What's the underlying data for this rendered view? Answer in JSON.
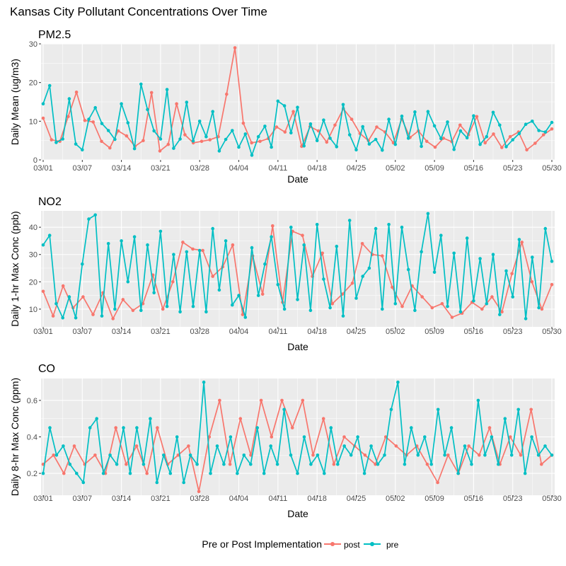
{
  "figure": {
    "title": "Kansas City Pollutant Concentrations Over Time"
  },
  "legend": {
    "title": "Pre or Post Implementation",
    "entries": [
      {
        "label": "post",
        "color": "#F8766D"
      },
      {
        "label": "pre",
        "color": "#00BFC4"
      }
    ]
  },
  "colors": {
    "post": "#F8766D",
    "pre": "#00BFC4",
    "panel_bg": "#EBEBEB",
    "grid": "#FFFFFF"
  },
  "chart_data": [
    {
      "type": "line",
      "title": "PM2.5",
      "xlabel": "Date",
      "ylabel": "Daily Mean (ug/m3)",
      "ylim": [
        0,
        30
      ],
      "yticks": [
        0,
        10,
        20,
        30
      ],
      "grid": true,
      "xticks": [
        "03/01",
        "03/07",
        "03/14",
        "03/21",
        "03/28",
        "04/04",
        "04/11",
        "04/18",
        "04/25",
        "05/02",
        "05/09",
        "05/16",
        "05/23",
        "05/30"
      ],
      "series": [
        {
          "name": "post",
          "values": [
            10.8,
            5.2,
            4.8,
            11.2,
            17.5,
            10.2,
            9.8,
            4.8,
            3.1,
            7.5,
            6.2,
            3.5,
            5.0,
            17.4,
            2.3,
            4.0,
            14.5,
            6.5,
            4.4,
            4.8,
            5.2,
            6.0,
            17.0,
            29.0,
            9.5,
            4.4,
            4.8,
            5.5,
            8.5,
            7.2,
            12.5,
            3.5,
            8.6,
            7.5,
            4.6,
            9.0,
            13.2,
            10.5,
            6.8,
            5.0,
            8.5,
            7.2,
            4.4,
            10.6,
            5.8,
            7.5,
            4.8,
            3.3,
            5.6,
            4.7,
            9.0,
            6.5,
            11.2,
            4.4,
            6.7,
            3.2,
            6.0,
            7.2,
            2.6,
            4.3,
            6.5,
            8.0
          ]
        },
        {
          "name": "pre",
          "values": [
            14.5,
            19.2,
            4.5,
            5.4,
            15.8,
            4.1,
            2.6,
            10.5,
            13.5,
            9.4,
            7.6,
            5.3,
            14.5,
            9.6,
            2.9,
            19.6,
            13.0,
            7.5,
            5.4,
            18.2,
            3.0,
            5.4,
            14.9,
            4.9,
            10.0,
            6.0,
            12.5,
            2.3,
            5.3,
            7.6,
            3.3,
            6.7,
            1.2,
            6.0,
            8.7,
            3.3,
            15.2,
            14.0,
            7.0,
            13.6,
            3.6,
            9.3,
            5.0,
            10.3,
            5.6,
            3.4,
            14.3,
            6.5,
            2.6,
            8.6,
            4.1,
            5.3,
            2.5,
            10.5,
            4.0,
            11.3,
            5.6,
            12.4,
            3.5,
            12.5,
            8.8,
            5.5,
            9.8,
            2.7,
            7.5,
            5.7,
            11.4,
            4.0,
            6.0,
            12.3,
            9.0,
            3.4,
            5.2,
            6.8,
            9.2,
            10.0,
            7.6,
            7.2,
            9.7
          ]
        }
      ]
    },
    {
      "type": "line",
      "title": "NO2",
      "xlabel": "Date",
      "ylabel": "Daily 1-hr Max Conc (ppb)",
      "ylim": [
        3.5,
        46
      ],
      "yticks": [
        10,
        20,
        30,
        40
      ],
      "grid": true,
      "xticks": [
        "03/01",
        "03/07",
        "03/14",
        "03/21",
        "03/28",
        "04/04",
        "04/11",
        "04/18",
        "04/25",
        "05/02",
        "05/09",
        "05/16",
        "05/23",
        "05/30"
      ],
      "series": [
        {
          "name": "post",
          "values": [
            16.5,
            7.5,
            18.5,
            10.5,
            14.5,
            8.0,
            16.0,
            6.5,
            13.5,
            9.5,
            12.0,
            22.5,
            10.0,
            20.0,
            34.5,
            32.0,
            31.5,
            22.0,
            25.5,
            33.5,
            8.0,
            29.5,
            15.5,
            40.5,
            12.5,
            38.5,
            37.0,
            22.0,
            30.5,
            12.0,
            15.5,
            19.5,
            34.0,
            30.0,
            29.5,
            18.0,
            11.0,
            18.5,
            14.5,
            10.5,
            12.0,
            7.0,
            8.5,
            12.5,
            10.0,
            14.5,
            9.0,
            23.0,
            34.5,
            20.0,
            10.0,
            19.0
          ]
        },
        {
          "name": "pre",
          "values": [
            33.5,
            37.0,
            12.0,
            6.8,
            14.5,
            6.8,
            26.5,
            43.0,
            44.5,
            7.5,
            34.0,
            10.0,
            35.0,
            20.0,
            36.5,
            9.5,
            33.5,
            16.0,
            38.5,
            11.0,
            30.0,
            9.0,
            31.0,
            11.0,
            31.5,
            9.0,
            39.5,
            17.0,
            35.0,
            11.5,
            15.0,
            7.0,
            32.5,
            15.0,
            26.5,
            36.5,
            19.0,
            10.0,
            40.0,
            13.5,
            33.5,
            9.5,
            41.0,
            21.0,
            10.5,
            33.0,
            7.5,
            42.5,
            14.0,
            22.0,
            25.0,
            39.5,
            10.0,
            41.0,
            12.0,
            40.0,
            24.5,
            9.5,
            31.0,
            45.0,
            23.5,
            37.0,
            11.0,
            30.5,
            9.0,
            36.0,
            13.0,
            28.5,
            12.0,
            30.0,
            8.0,
            24.0,
            14.5,
            35.5,
            6.5,
            29.0,
            10.5,
            39.5,
            27.5
          ]
        }
      ]
    },
    {
      "type": "line",
      "title": "CO",
      "xlabel": "Date",
      "ylabel": "Daily 8-hr Max Conc (ppm)",
      "ylim": [
        0.08,
        0.72
      ],
      "yticks": [
        0.2,
        0.4,
        0.6
      ],
      "grid": true,
      "xticks": [
        "03/01",
        "03/07",
        "03/14",
        "03/21",
        "03/28",
        "04/04",
        "04/11",
        "04/18",
        "04/25",
        "05/02",
        "05/09",
        "05/16",
        "05/23",
        "05/30"
      ],
      "series": [
        {
          "name": "post",
          "values": [
            0.25,
            0.3,
            0.2,
            0.35,
            0.25,
            0.3,
            0.2,
            0.45,
            0.25,
            0.35,
            0.2,
            0.45,
            0.25,
            0.3,
            0.35,
            0.1,
            0.4,
            0.6,
            0.25,
            0.5,
            0.3,
            0.6,
            0.4,
            0.6,
            0.45,
            0.6,
            0.3,
            0.5,
            0.25,
            0.4,
            0.35,
            0.3,
            0.25,
            0.4,
            0.35,
            0.3,
            0.35,
            0.25,
            0.15,
            0.3,
            0.2,
            0.35,
            0.3,
            0.45,
            0.25,
            0.4,
            0.3,
            0.55,
            0.25,
            0.3
          ]
        },
        {
          "name": "pre",
          "values": [
            0.2,
            0.45,
            0.3,
            0.35,
            0.25,
            0.2,
            0.15,
            0.45,
            0.5,
            0.2,
            0.3,
            0.25,
            0.45,
            0.2,
            0.45,
            0.25,
            0.5,
            0.15,
            0.3,
            0.2,
            0.4,
            0.15,
            0.3,
            0.25,
            0.7,
            0.2,
            0.35,
            0.25,
            0.4,
            0.2,
            0.3,
            0.25,
            0.45,
            0.2,
            0.35,
            0.25,
            0.55,
            0.3,
            0.2,
            0.4,
            0.25,
            0.3,
            0.2,
            0.45,
            0.25,
            0.35,
            0.3,
            0.4,
            0.2,
            0.35,
            0.25,
            0.3,
            0.55,
            0.7,
            0.25,
            0.45,
            0.3,
            0.4,
            0.25,
            0.55,
            0.3,
            0.45,
            0.2,
            0.35,
            0.25,
            0.6,
            0.3,
            0.4,
            0.25,
            0.5,
            0.3,
            0.55,
            0.2,
            0.4,
            0.3,
            0.35,
            0.3
          ]
        }
      ]
    }
  ]
}
